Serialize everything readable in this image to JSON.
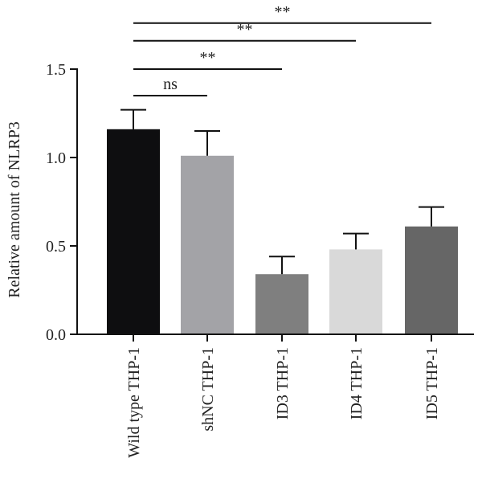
{
  "chart_data": {
    "type": "bar",
    "ylabel": "Relative amount of NLRP3",
    "ylim": [
      0,
      1.5
    ],
    "yticks": [
      "0.0",
      "0.5",
      "1.0",
      "1.5"
    ],
    "categories": [
      "Wild type THP-1",
      "shNC THP-1",
      "ID3 THP-1",
      "ID4 THP-1",
      "ID5 THP-1"
    ],
    "values": [
      1.16,
      1.01,
      0.34,
      0.48,
      0.61
    ],
    "errors": [
      0.11,
      0.14,
      0.1,
      0.09,
      0.11
    ],
    "colors": [
      "#0e0e10",
      "#a3a3a7",
      "#7f7f7f",
      "#d9d9d9",
      "#666666"
    ],
    "significance": [
      {
        "from": 0,
        "to": 1,
        "label": "ns",
        "level": 1.35
      },
      {
        "from": 0,
        "to": 2,
        "label": "**",
        "level": 1.5
      },
      {
        "from": 0,
        "to": 3,
        "label": "**",
        "level": 1.66
      },
      {
        "from": 0,
        "to": 4,
        "label": "**",
        "level": 1.76
      }
    ]
  }
}
